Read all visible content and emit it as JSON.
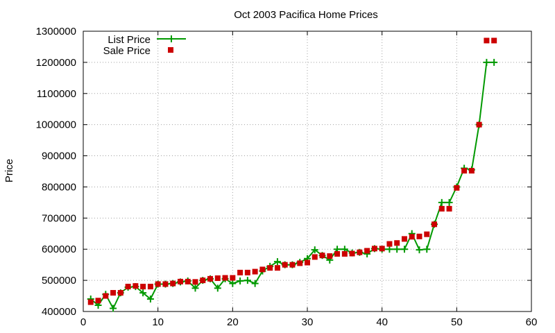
{
  "chart_data": {
    "type": "line",
    "title": "Oct 2003 Pacifica Home Prices",
    "xlabel": "",
    "ylabel": "Price",
    "xlim": [
      0,
      60
    ],
    "ylim": [
      400000,
      1300000
    ],
    "x_ticks": [
      "0",
      "10",
      "20",
      "30",
      "40",
      "50",
      "60"
    ],
    "y_ticks": [
      "400000",
      "500000",
      "600000",
      "700000",
      "800000",
      "900000",
      "1000000",
      "1100000",
      "1200000",
      "1300000"
    ],
    "grid": true,
    "legend_position": "top-left",
    "colors": {
      "list": "#009900",
      "sale": "#cc0000"
    },
    "series": [
      {
        "name": "List Price",
        "style": "lines+points",
        "x": [
          1,
          2,
          3,
          4,
          5,
          6,
          7,
          8,
          9,
          10,
          11,
          12,
          13,
          14,
          15,
          16,
          17,
          18,
          19,
          20,
          21,
          22,
          23,
          24,
          25,
          26,
          27,
          28,
          29,
          30,
          31,
          32,
          33,
          34,
          35,
          36,
          37,
          38,
          39,
          40,
          41,
          42,
          43,
          44,
          45,
          46,
          47,
          48,
          49,
          50,
          51,
          52,
          53,
          54,
          55
        ],
        "y": [
          440000,
          420000,
          455000,
          410000,
          460000,
          478000,
          480000,
          460000,
          440000,
          488000,
          488000,
          490000,
          495000,
          498000,
          475000,
          500000,
          505000,
          475000,
          505000,
          490000,
          498000,
          500000,
          490000,
          530000,
          545000,
          560000,
          550000,
          550000,
          558000,
          570000,
          598000,
          580000,
          565000,
          600000,
          600000,
          588000,
          590000,
          585000,
          602000,
          600000,
          600000,
          600000,
          600000,
          650000,
          598000,
          600000,
          680000,
          750000,
          750000,
          800000,
          860000,
          855000,
          1000000,
          1200000,
          1200000
        ]
      },
      {
        "name": "Sale Price",
        "style": "points",
        "x": [
          1,
          2,
          3,
          4,
          5,
          6,
          7,
          8,
          9,
          10,
          11,
          12,
          13,
          14,
          15,
          16,
          17,
          18,
          19,
          20,
          21,
          22,
          23,
          24,
          25,
          26,
          27,
          28,
          29,
          30,
          31,
          32,
          33,
          34,
          35,
          36,
          37,
          38,
          39,
          40,
          41,
          42,
          43,
          44,
          45,
          46,
          47,
          48,
          49,
          50,
          51,
          52,
          53,
          54,
          55
        ],
        "y": [
          430000,
          435000,
          450000,
          460000,
          460000,
          480000,
          482000,
          480000,
          480000,
          488000,
          488000,
          490000,
          496000,
          496000,
          495000,
          500000,
          505000,
          507000,
          508000,
          508000,
          525000,
          525000,
          528000,
          535000,
          540000,
          540000,
          550000,
          550000,
          555000,
          557000,
          575000,
          580000,
          578000,
          585000,
          585000,
          586000,
          590000,
          595000,
          602000,
          602000,
          617000,
          620000,
          633000,
          640000,
          641000,
          648000,
          680000,
          730000,
          730000,
          797000,
          852000,
          852000,
          1000000,
          1270000,
          1270000
        ]
      }
    ]
  }
}
